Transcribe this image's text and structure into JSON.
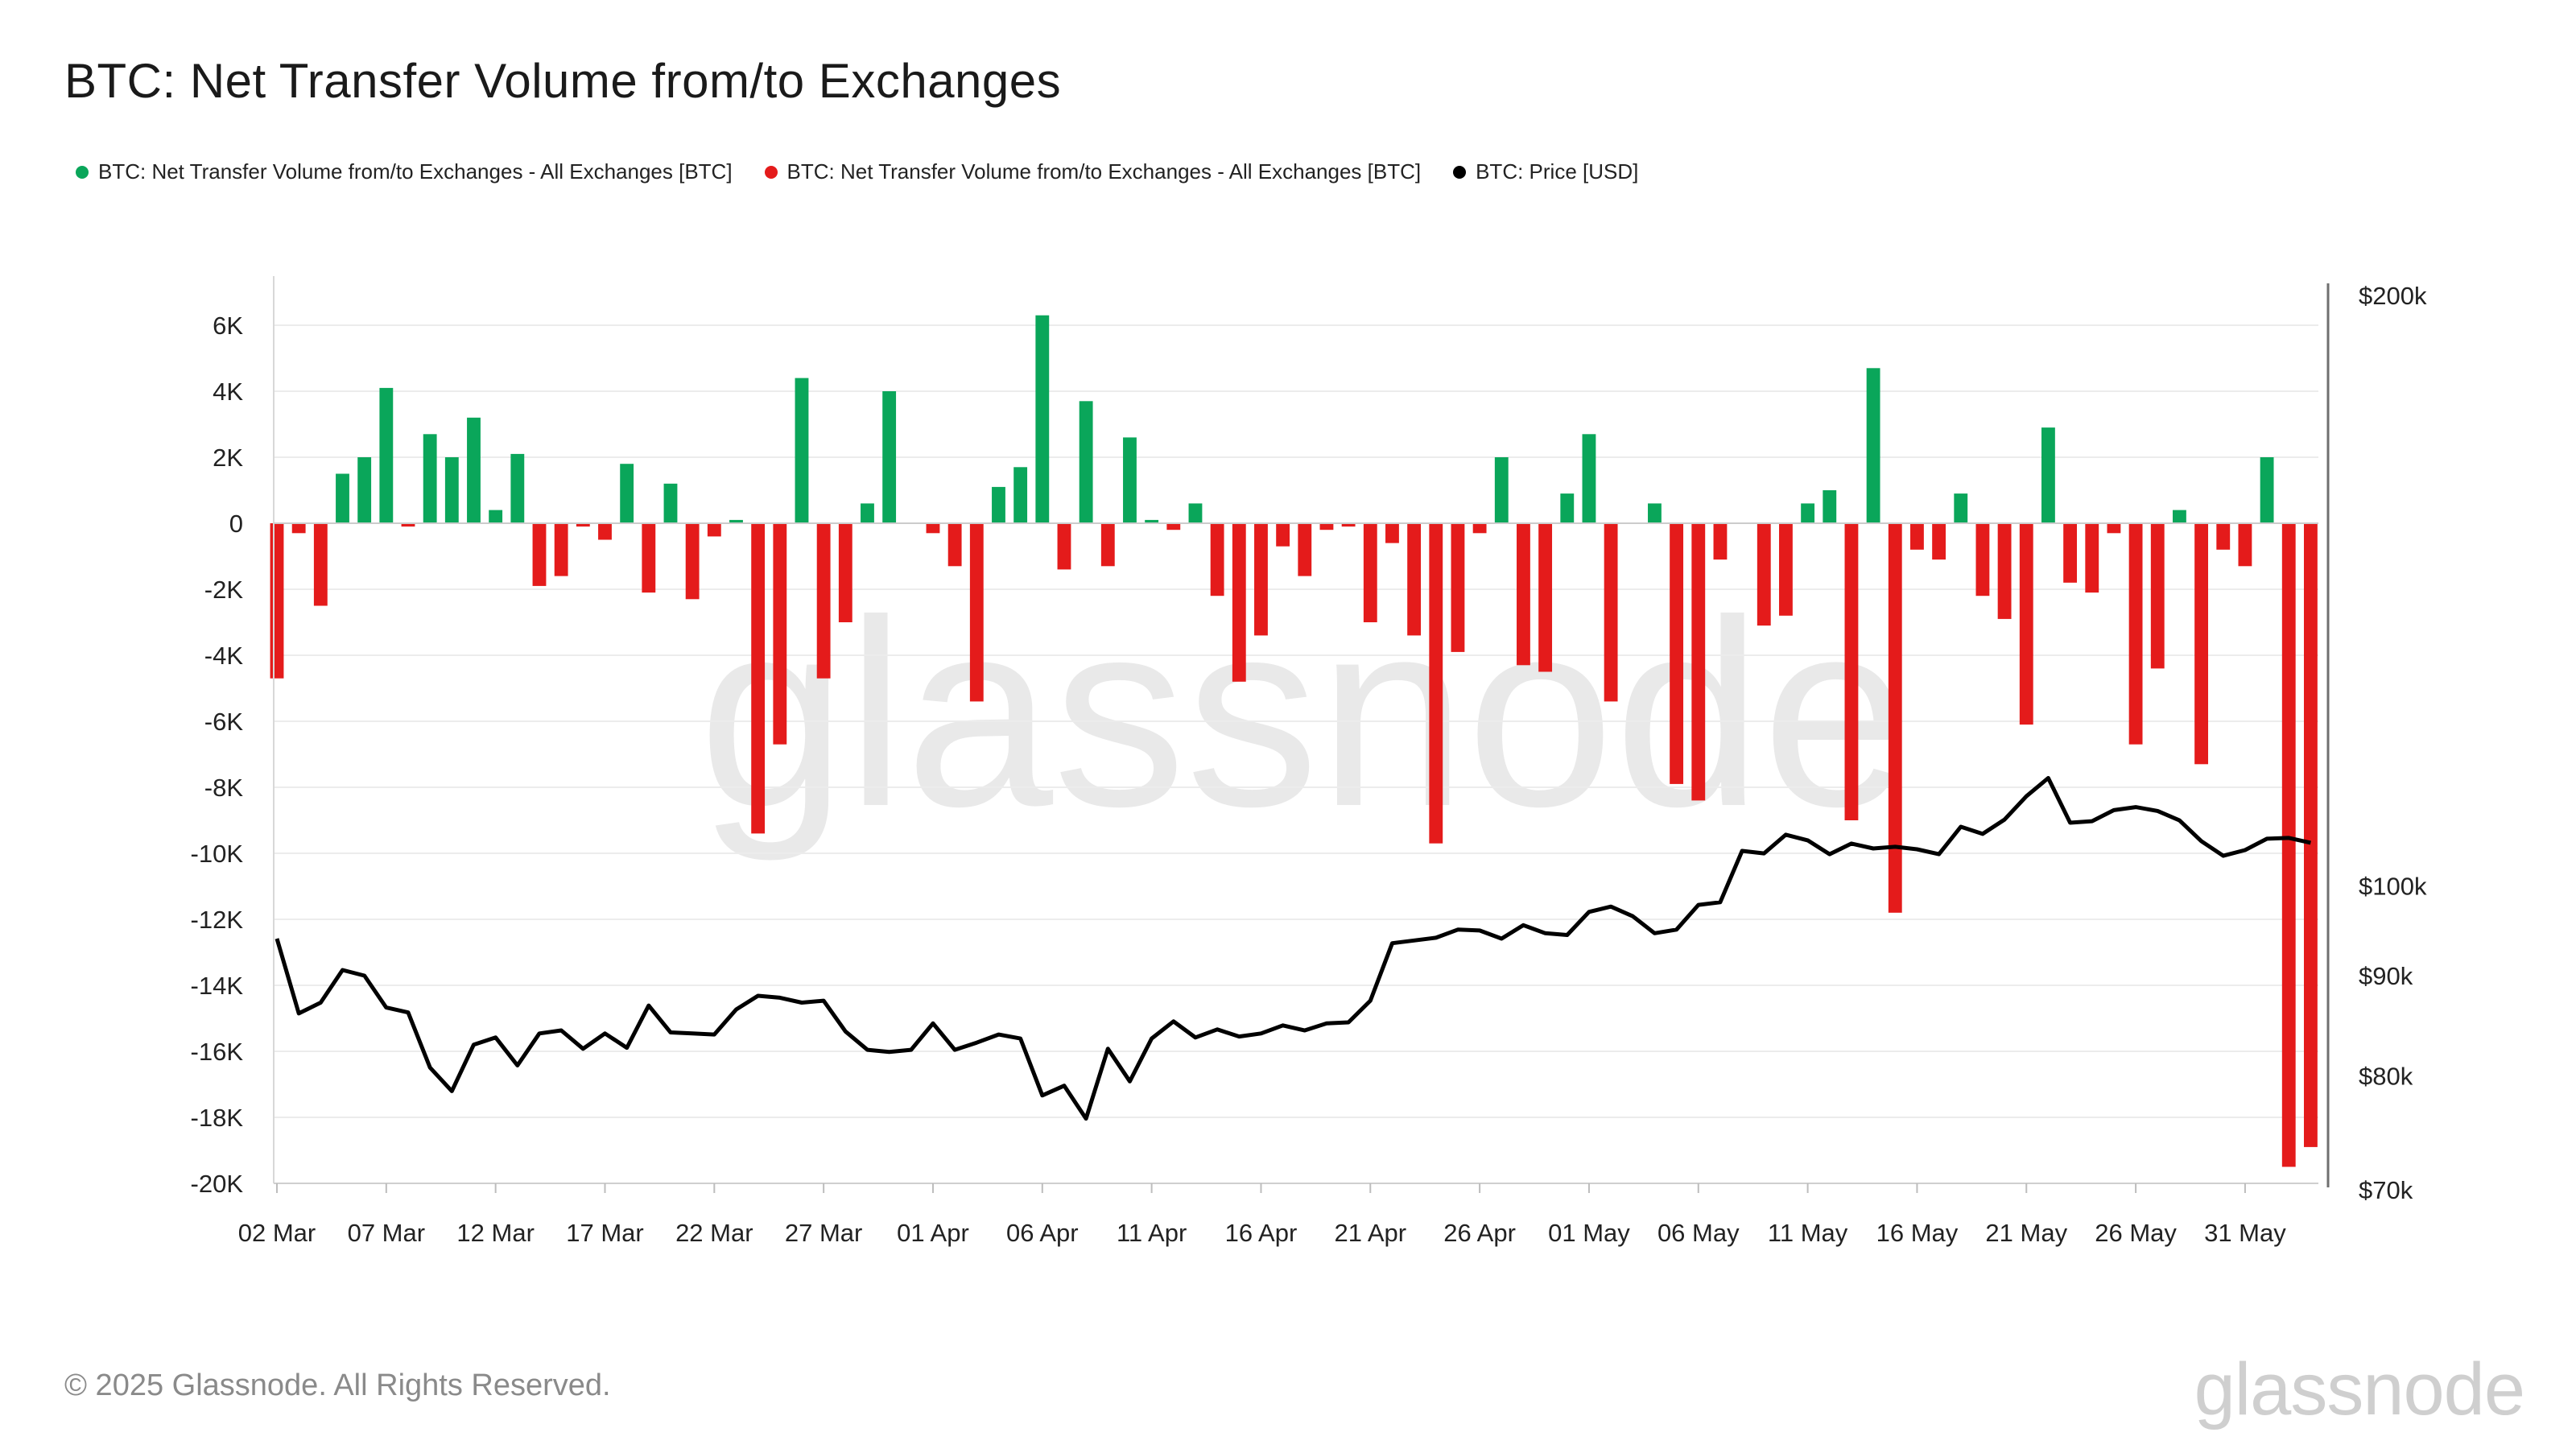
{
  "title": "BTC: Net Transfer Volume from/to Exchanges",
  "legend": [
    {
      "label": "BTC: Net Transfer Volume from/to Exchanges - All Exchanges [BTC]",
      "color": "#0aa65a"
    },
    {
      "label": "BTC: Net Transfer Volume from/to Exchanges - All Exchanges [BTC]",
      "color": "#e41b1b"
    },
    {
      "label": "BTC: Price [USD]",
      "color": "#000000"
    }
  ],
  "footer": "© 2025 Glassnode. All Rights Reserved.",
  "logo": "glassnode",
  "watermark": "glassnode",
  "chart_data": {
    "type": "bar",
    "start_date": "2025-03-02",
    "positive_color": "#0aa65a",
    "negative_color": "#e41b1b",
    "price_color": "#000000",
    "ylim_left": [
      -20000,
      7000
    ],
    "yticks_left": [
      {
        "v": 6000,
        "label": "6K"
      },
      {
        "v": 4000,
        "label": "4K"
      },
      {
        "v": 2000,
        "label": "2K"
      },
      {
        "v": 0,
        "label": "0"
      },
      {
        "v": -2000,
        "label": "-2K"
      },
      {
        "v": -4000,
        "label": "-4K"
      },
      {
        "v": -6000,
        "label": "-6K"
      },
      {
        "v": -8000,
        "label": "-8K"
      },
      {
        "v": -10000,
        "label": "-10K"
      },
      {
        "v": -12000,
        "label": "-12K"
      },
      {
        "v": -14000,
        "label": "-14K"
      },
      {
        "v": -16000,
        "label": "-16K"
      },
      {
        "v": -18000,
        "label": "-18K"
      },
      {
        "v": -20000,
        "label": "-20K"
      }
    ],
    "yscale_right": "log",
    "ylim_right": [
      70000,
      200000
    ],
    "yticks_right": [
      {
        "v": 200000,
        "label": "$200k"
      },
      {
        "v": 100000,
        "label": "$100k"
      },
      {
        "v": 90000,
        "label": "$90k"
      },
      {
        "v": 80000,
        "label": "$80k"
      },
      {
        "v": 70000,
        "label": "$70k"
      }
    ],
    "xticks": [
      {
        "i": 0,
        "label": "02 Mar"
      },
      {
        "i": 5,
        "label": "07 Mar"
      },
      {
        "i": 10,
        "label": "12 Mar"
      },
      {
        "i": 15,
        "label": "17 Mar"
      },
      {
        "i": 20,
        "label": "22 Mar"
      },
      {
        "i": 25,
        "label": "27 Mar"
      },
      {
        "i": 30,
        "label": "01 Apr"
      },
      {
        "i": 35,
        "label": "06 Apr"
      },
      {
        "i": 40,
        "label": "11 Apr"
      },
      {
        "i": 45,
        "label": "16 Apr"
      },
      {
        "i": 50,
        "label": "21 Apr"
      },
      {
        "i": 55,
        "label": "26 Apr"
      },
      {
        "i": 60,
        "label": "01 May"
      },
      {
        "i": 65,
        "label": "06 May"
      },
      {
        "i": 70,
        "label": "11 May"
      },
      {
        "i": 75,
        "label": "16 May"
      },
      {
        "i": 80,
        "label": "21 May"
      },
      {
        "i": 85,
        "label": "26 May"
      },
      {
        "i": 90,
        "label": "31 May"
      }
    ],
    "net_volume": [
      -4700,
      -300,
      -2500,
      1500,
      2000,
      4100,
      -100,
      2700,
      2000,
      3200,
      400,
      2100,
      -1900,
      -1600,
      -100,
      -500,
      1800,
      -2100,
      1200,
      -2300,
      -400,
      100,
      -9400,
      -6700,
      4400,
      -4700,
      -3000,
      600,
      4000,
      0,
      -300,
      -1300,
      -5400,
      1100,
      1700,
      6300,
      -1400,
      3700,
      -1300,
      2600,
      100,
      -200,
      600,
      -2200,
      -4800,
      -3400,
      -700,
      -1600,
      -200,
      -100,
      -3000,
      -600,
      -3400,
      -9700,
      -3900,
      -300,
      2000,
      -4300,
      -4500,
      900,
      2700,
      -5400,
      0,
      600,
      -7900,
      -8400,
      -1100,
      0,
      -3100,
      -2800,
      600,
      1000,
      -9000,
      4700,
      -11800,
      -800,
      -1100,
      900,
      -2200,
      -2900,
      -6100,
      2900,
      -1800,
      -2100,
      -300,
      -6700,
      -4400,
      400,
      -7300,
      -800,
      -1300,
      2000,
      -19500,
      -18900
    ],
    "price": [
      94000,
      86100,
      87200,
      90600,
      90000,
      86700,
      86200,
      80800,
      78600,
      83000,
      83700,
      81000,
      84100,
      84400,
      82600,
      84100,
      82700,
      86900,
      84200,
      84100,
      84000,
      86500,
      87900,
      87700,
      87200,
      87400,
      84300,
      82500,
      82300,
      82500,
      85100,
      82500,
      83200,
      84000,
      83600,
      78200,
      79100,
      76100,
      82600,
      79500,
      83600,
      85300,
      83700,
      84500,
      83800,
      84100,
      84900,
      84400,
      85100,
      85200,
      87400,
      93500,
      93800,
      94100,
      95000,
      94900,
      94000,
      95500,
      94600,
      94400,
      97000,
      97600,
      96500,
      94600,
      95000,
      97800,
      98100,
      104200,
      103900,
      106200,
      105500,
      103800,
      105100,
      104500,
      104700,
      104400,
      103800,
      107200,
      106300,
      108100,
      111100,
      113500,
      107700,
      107900,
      109300,
      109700,
      109200,
      108000,
      105400,
      103600,
      104300,
      105700,
      105800,
      105200
    ]
  }
}
